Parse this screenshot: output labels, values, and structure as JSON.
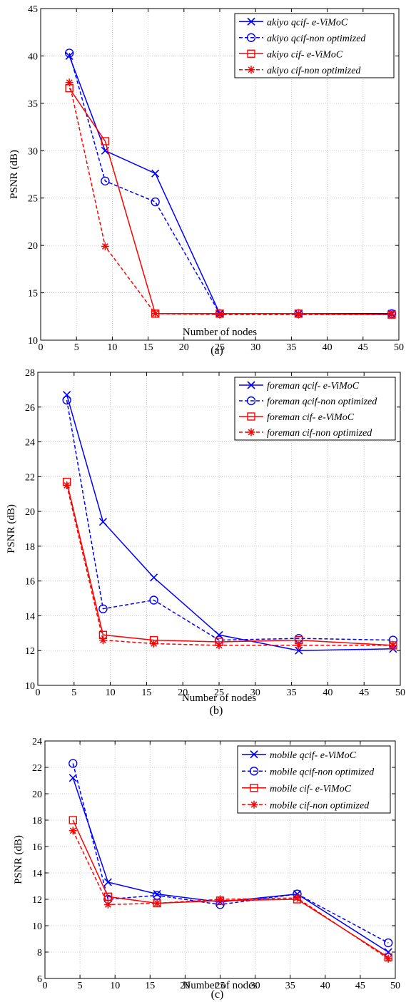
{
  "colors": {
    "blue": "#0000ff",
    "red": "#ff0000",
    "grid": "#c0c0c0"
  },
  "chart_data": [
    {
      "type": "line",
      "caption": "(a)",
      "xlabel": "Number of nodes",
      "ylabel": "PSNR (dB)",
      "xlim": [
        0,
        50
      ],
      "ylim": [
        10,
        45
      ],
      "xticks": [
        0,
        5,
        10,
        15,
        20,
        25,
        30,
        35,
        40,
        45,
        50
      ],
      "yticks": [
        10,
        15,
        20,
        25,
        30,
        35,
        40,
        45
      ],
      "grid": true,
      "legend": "top-right",
      "x": [
        4,
        9,
        16,
        25,
        36,
        49
      ],
      "series": [
        {
          "name": "akiyo qcif- e-ViMoC",
          "color": "#0000ff",
          "dash": false,
          "marker": "x",
          "values": [
            40.0,
            30.0,
            27.6,
            12.8,
            12.8,
            12.8
          ]
        },
        {
          "name": "akiyo qcif-non optimized",
          "color": "#0000ff",
          "dash": true,
          "marker": "o",
          "values": [
            40.3,
            26.8,
            24.6,
            12.8,
            12.8,
            12.8
          ]
        },
        {
          "name": "akiyo cif- e-ViMoC",
          "color": "#ff0000",
          "dash": false,
          "marker": "s",
          "values": [
            36.6,
            31.0,
            12.8,
            12.8,
            12.8,
            12.7
          ]
        },
        {
          "name": "akiyo cif-non optimized",
          "color": "#ff0000",
          "dash": true,
          "marker": "*",
          "values": [
            37.2,
            19.9,
            12.8,
            12.7,
            12.7,
            12.7
          ]
        }
      ]
    },
    {
      "type": "line",
      "caption": "(b)",
      "xlabel": "Number of nodes",
      "ylabel": "PSNR (dB)",
      "xlim": [
        0,
        50
      ],
      "ylim": [
        10,
        28
      ],
      "xticks": [
        0,
        5,
        10,
        15,
        20,
        25,
        30,
        35,
        40,
        45,
        50
      ],
      "yticks": [
        10,
        12,
        14,
        16,
        18,
        20,
        22,
        24,
        26,
        28
      ],
      "grid": true,
      "legend": "top-right",
      "x": [
        4,
        9,
        16,
        25,
        36,
        49
      ],
      "series": [
        {
          "name": "foreman qcif- e-ViMoC",
          "color": "#0000ff",
          "dash": false,
          "marker": "x",
          "values": [
            26.7,
            19.4,
            16.2,
            12.9,
            12.0,
            12.1
          ]
        },
        {
          "name": "foreman qcif-non optimized",
          "color": "#0000ff",
          "dash": true,
          "marker": "o",
          "values": [
            26.4,
            14.4,
            14.9,
            12.6,
            12.7,
            12.6
          ]
        },
        {
          "name": "foreman cif- e-ViMoC",
          "color": "#ff0000",
          "dash": false,
          "marker": "s",
          "values": [
            21.7,
            12.9,
            12.6,
            12.5,
            12.6,
            12.3
          ]
        },
        {
          "name": "foreman cif-non optimized",
          "color": "#ff0000",
          "dash": true,
          "marker": "*",
          "values": [
            21.5,
            12.6,
            12.4,
            12.3,
            12.3,
            12.3
          ]
        }
      ]
    },
    {
      "type": "line",
      "caption": "(c)",
      "xlabel": "Number of nodes",
      "ylabel": "PSNR (dB)",
      "xlim": [
        0,
        50
      ],
      "ylim": [
        6,
        24
      ],
      "xticks": [
        0,
        5,
        10,
        15,
        20,
        25,
        30,
        35,
        40,
        45,
        50
      ],
      "yticks": [
        6,
        8,
        10,
        12,
        14,
        16,
        18,
        20,
        22,
        24
      ],
      "grid": true,
      "legend": "top-right",
      "x": [
        4,
        9,
        16,
        25,
        36,
        49
      ],
      "series": [
        {
          "name": "mobile qcif- e-ViMoC",
          "color": "#0000ff",
          "dash": false,
          "marker": "x",
          "values": [
            21.2,
            13.3,
            12.4,
            11.8,
            12.4,
            8.0
          ]
        },
        {
          "name": "mobile qcif-non optimized",
          "color": "#0000ff",
          "dash": true,
          "marker": "o",
          "values": [
            22.3,
            12.0,
            12.3,
            11.6,
            12.4,
            8.7
          ]
        },
        {
          "name": "mobile cif- e-ViMoC",
          "color": "#ff0000",
          "dash": false,
          "marker": "s",
          "values": [
            18.0,
            12.2,
            11.7,
            11.9,
            12.0,
            7.6
          ]
        },
        {
          "name": "mobile cif-non optimized",
          "color": "#ff0000",
          "dash": true,
          "marker": "*",
          "values": [
            17.2,
            11.6,
            11.7,
            12.0,
            12.1,
            7.5
          ]
        }
      ]
    }
  ]
}
